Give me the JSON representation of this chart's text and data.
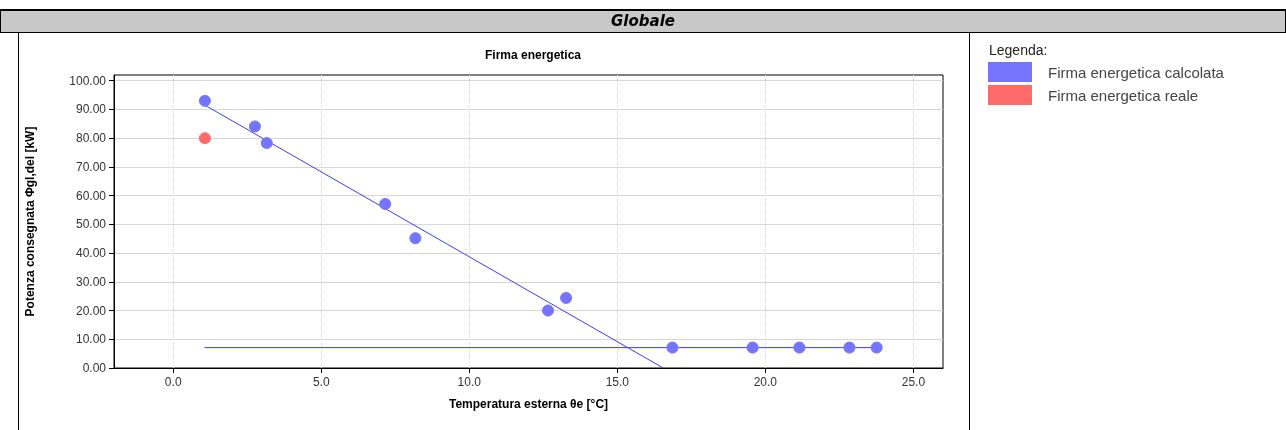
{
  "chart_data": {
    "type": "scatter",
    "title": "Firma energetica",
    "xlabel": "Temperatura esterna θe [°C]",
    "ylabel": "Potenza consegnata Φgl,del [kW]",
    "legend_title": "Legenda:",
    "annotations": [
      "Globale"
    ],
    "xlim": [
      -2,
      26
    ],
    "ylim": [
      0,
      102
    ],
    "xticks": [
      {
        "value": 0,
        "label": "0.0"
      },
      {
        "value": 5,
        "label": "5.0"
      },
      {
        "value": 10,
        "label": "10.0"
      },
      {
        "value": 15,
        "label": "15.0"
      },
      {
        "value": 20,
        "label": "20.0"
      },
      {
        "value": 25,
        "label": "25.0"
      }
    ],
    "yticks": [
      {
        "value": 0,
        "label": "0.00"
      },
      {
        "value": 10,
        "label": "10.00"
      },
      {
        "value": 20,
        "label": "20.00"
      },
      {
        "value": 30,
        "label": "30.00"
      },
      {
        "value": 40,
        "label": "40.00"
      },
      {
        "value": 50,
        "label": "50.00"
      },
      {
        "value": 60,
        "label": "60.00"
      },
      {
        "value": 70,
        "label": "70.00"
      },
      {
        "value": 80,
        "label": "80.00"
      },
      {
        "value": 90,
        "label": "90.00"
      },
      {
        "value": 100,
        "label": "100.00"
      }
    ],
    "grid": true,
    "legend": "right",
    "marker": "circle",
    "series": [
      {
        "type": "line",
        "color": "#3c3cff",
        "x": [
          1.07,
          16.55
        ],
        "values": [
          91.5,
          0
        ],
        "marker": "none",
        "line_style": "solid"
      },
      {
        "type": "line",
        "color": "#3c3cff",
        "x": [
          1.07,
          23.76
        ],
        "values": [
          7.1,
          7.1
        ],
        "marker": "none",
        "line_style": "solid"
      },
      {
        "name": "Firma energetica calcolata",
        "color": "#7474ff",
        "x": [
          1.07,
          2.76,
          3.16,
          7.16,
          8.18,
          12.66,
          13.27,
          16.86,
          19.57,
          21.15,
          22.84,
          23.76
        ],
        "values": [
          93.0,
          84.1,
          78.3,
          57.1,
          45.2,
          20.0,
          24.4,
          7.1,
          7.1,
          7.1,
          7.1,
          7.1
        ]
      },
      {
        "name": "Firma energetica reale",
        "color": "#ff6a6a",
        "x": [
          1.07
        ],
        "values": [
          80
        ]
      }
    ]
  }
}
